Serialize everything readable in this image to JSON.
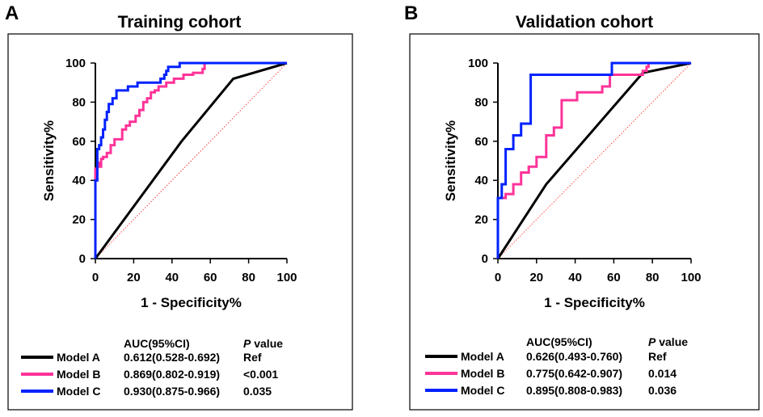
{
  "chart_data": [
    {
      "type": "line",
      "panel_label": "A",
      "title": "Training cohort",
      "xlabel": "1 - Specificity%",
      "ylabel": "Sensitivity%",
      "xlim": [
        0,
        100
      ],
      "ylim": [
        0,
        100
      ],
      "xticks": [
        "0",
        "20",
        "40",
        "60",
        "80",
        "100"
      ],
      "yticks": [
        "0",
        "20",
        "40",
        "60",
        "80",
        "100"
      ],
      "grid": false,
      "reference_line": {
        "x": [
          0,
          100
        ],
        "y": [
          0,
          100
        ],
        "color": "#ff4444",
        "style": "dotted"
      },
      "legend_header": {
        "auc": "AUC(95%CI)",
        "p_italic": "P",
        "p_rest": " value"
      },
      "series": [
        {
          "name": "Model A",
          "color": "#000000",
          "auc": "0.612(0.528-0.692)",
          "p_value": "Ref",
          "x": [
            0,
            45,
            72,
            100
          ],
          "y": [
            0,
            60,
            92,
            100
          ]
        },
        {
          "name": "Model B",
          "color": "#ff3399",
          "auc": "0.869(0.802-0.919)",
          "p_value": "<0.001",
          "x": [
            0,
            0,
            1,
            1,
            2,
            2,
            3,
            3,
            4,
            4,
            6,
            6,
            8,
            8,
            10,
            10,
            14,
            14,
            16,
            16,
            18,
            18,
            21,
            21,
            23,
            23,
            25,
            25,
            27,
            27,
            29,
            29,
            31,
            31,
            33,
            33,
            37,
            37,
            41,
            41,
            46,
            46,
            51,
            51,
            56,
            56,
            57,
            57
          ],
          "y": [
            0,
            46,
            46,
            49,
            49,
            47,
            47,
            51,
            51,
            52,
            52,
            54,
            54,
            58,
            58,
            61,
            61,
            66,
            66,
            68,
            68,
            70,
            70,
            73,
            73,
            76,
            76,
            80,
            80,
            82,
            82,
            85,
            85,
            86,
            86,
            88,
            88,
            90,
            90,
            92,
            92,
            94,
            94,
            95,
            95,
            97,
            97,
            100
          ]
        },
        {
          "name": "Model C",
          "color": "#0022ff",
          "auc": "0.930(0.875-0.966)",
          "p_value": "0.035",
          "x": [
            0,
            0,
            1,
            1,
            2,
            2,
            3,
            3,
            4,
            4,
            5,
            5,
            6,
            6,
            7,
            7,
            9,
            9,
            11,
            11,
            17,
            17,
            22,
            22,
            34,
            34,
            36,
            36,
            37,
            37,
            38,
            38,
            44,
            44,
            100
          ],
          "y": [
            0,
            40,
            40,
            56,
            56,
            58,
            58,
            62,
            62,
            66,
            66,
            71,
            71,
            75,
            75,
            79,
            79,
            82,
            82,
            86,
            86,
            88,
            88,
            90,
            90,
            92,
            92,
            94,
            94,
            96,
            96,
            98,
            98,
            100,
            100
          ]
        }
      ]
    },
    {
      "type": "line",
      "panel_label": "B",
      "title": "Validation cohort",
      "xlabel": "1 - Specificity%",
      "ylabel": "Sensitivity%",
      "xlim": [
        0,
        100
      ],
      "ylim": [
        0,
        100
      ],
      "xticks": [
        "0",
        "20",
        "40",
        "60",
        "80",
        "100"
      ],
      "yticks": [
        "0",
        "20",
        "40",
        "60",
        "80",
        "100"
      ],
      "grid": false,
      "reference_line": {
        "x": [
          0,
          100
        ],
        "y": [
          0,
          100
        ],
        "color": "#ff4444",
        "style": "dotted"
      },
      "legend_header": {
        "auc": "AUC(95%CI)",
        "p_italic": "P",
        "p_rest": " value"
      },
      "series": [
        {
          "name": "Model A",
          "color": "#000000",
          "auc": "0.626(0.493-0.760)",
          "p_value": "Ref",
          "x": [
            0,
            25,
            75,
            100
          ],
          "y": [
            0,
            38,
            95,
            100
          ]
        },
        {
          "name": "Model B",
          "color": "#ff3399",
          "auc": "0.775(0.642-0.907)",
          "p_value": "0.014",
          "x": [
            0,
            0,
            4,
            4,
            8,
            8,
            12,
            12,
            16,
            16,
            20,
            20,
            25,
            25,
            29,
            29,
            33,
            33,
            41,
            41,
            54,
            54,
            58,
            58,
            75,
            75,
            77,
            77,
            78,
            78,
            100
          ],
          "y": [
            0,
            31,
            31,
            33,
            33,
            38,
            38,
            44,
            44,
            47,
            47,
            52,
            52,
            63,
            63,
            67,
            67,
            81,
            81,
            85,
            85,
            88,
            88,
            94,
            94,
            96,
            96,
            98,
            98,
            100,
            100
          ]
        },
        {
          "name": "Model C",
          "color": "#0022ff",
          "auc": "0.895(0.808-0.983)",
          "p_value": "0.036",
          "x": [
            0,
            0,
            2,
            2,
            4,
            4,
            8,
            8,
            12,
            12,
            17,
            17,
            59,
            59,
            100
          ],
          "y": [
            0,
            31,
            31,
            38,
            38,
            56,
            56,
            63,
            63,
            69,
            69,
            94,
            94,
            100,
            100
          ]
        }
      ]
    }
  ]
}
